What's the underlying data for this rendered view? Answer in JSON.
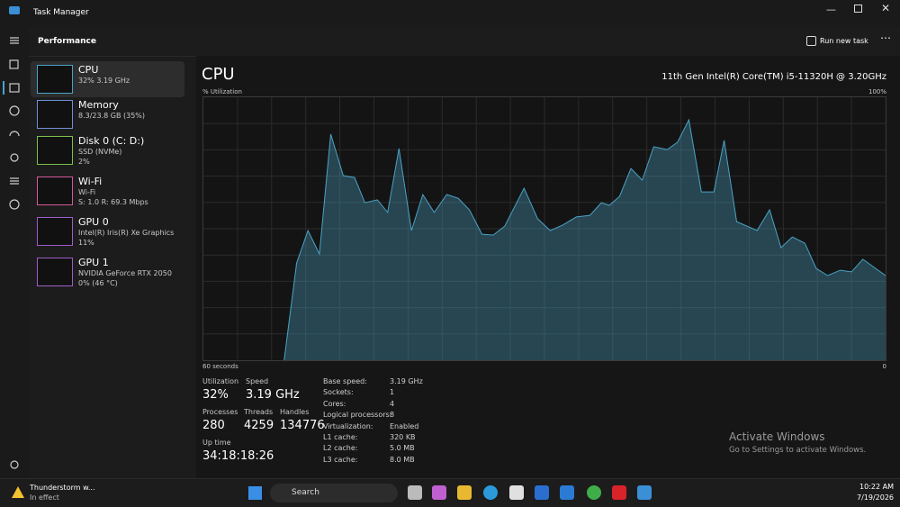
{
  "window": {
    "title": "Task Manager"
  },
  "header": {
    "title": "Performance",
    "action": "Run new task"
  },
  "devices": [
    {
      "name": "CPU",
      "lines": [
        "32% 3.19 GHz"
      ]
    },
    {
      "name": "Memory",
      "lines": [
        "8.3/23.8 GB (35%)"
      ]
    },
    {
      "name": "Disk 0 (C: D:)",
      "lines": [
        "SSD (NVMe)",
        "2%"
      ]
    },
    {
      "name": "Wi-Fi",
      "lines": [
        "Wi-Fi",
        "S: 1.0 R: 69.3 Mbps"
      ]
    },
    {
      "name": "GPU 0",
      "lines": [
        "Intel(R) Iris(R) Xe Graphics",
        "11%"
      ]
    },
    {
      "name": "GPU 1",
      "lines": [
        "NVIDIA GeForce RTX 2050",
        "0% (46 °C)"
      ]
    }
  ],
  "cpu": {
    "title": "CPU",
    "model": "11th Gen Intel(R) Core(TM) i5-11320H @ 3.20GHz",
    "y_label": "% Utilization",
    "y_max_label": "100%",
    "x_left_label": "60 seconds",
    "x_right_label": "0",
    "graph": {
      "type": "area",
      "x": [
        52.9,
        51.8,
        50.8,
        49.8,
        48.8,
        47.7,
        46.7,
        45.8,
        44.7,
        43.8,
        42.8,
        41.7,
        40.7,
        39.7,
        38.6,
        37.6,
        36.6,
        35.5,
        34.5,
        33.5,
        31.8,
        30.6,
        29.5,
        28.4,
        27.2,
        26.0,
        25.0,
        24.3,
        23.4,
        22.4,
        21.4,
        20.4,
        19.2,
        18.3,
        17.3,
        16.2,
        15.1,
        14.2,
        13.1,
        11.3,
        10.2,
        9.2,
        8.2,
        7.1,
        6.1,
        5.1,
        4.0,
        3.0,
        2.0,
        0
      ],
      "values": [
        0,
        37.0,
        49.3,
        40.4,
        86.0,
        70.2,
        69.5,
        59.9,
        61.0,
        56.2,
        80.5,
        49.3,
        63.0,
        56.2,
        63.0,
        61.6,
        57.2,
        47.9,
        47.6,
        51.0,
        65.4,
        53.8,
        49.3,
        51.4,
        54.5,
        55.1,
        59.9,
        58.9,
        62.3,
        72.9,
        68.5,
        81.2,
        80.1,
        82.9,
        91.4,
        64.0,
        64.0,
        83.6,
        52.7,
        49.3,
        57.2,
        42.8,
        46.9,
        44.5,
        34.9,
        32.2,
        34.2,
        33.6,
        38.4,
        32.2
      ],
      "xlim": [
        60,
        0
      ],
      "ylim": [
        0,
        100
      ],
      "color": "#4aa3c7"
    }
  },
  "stats": [
    {
      "label": "Utilization",
      "value": "32%"
    },
    {
      "label": "Speed",
      "value": "3.19 GHz"
    },
    {
      "label": "Processes",
      "value": "280"
    },
    {
      "label": "Threads",
      "value": "4259"
    },
    {
      "label": "Handles",
      "value": "134776"
    },
    {
      "label": "Up time",
      "value": "34:18:18:26"
    }
  ],
  "specs": [
    {
      "label": "Base speed:",
      "value": "3.19 GHz"
    },
    {
      "label": "Sockets:",
      "value": "1"
    },
    {
      "label": "Cores:",
      "value": "4"
    },
    {
      "label": "Logical processors:",
      "value": "8"
    },
    {
      "label": "Virtualization:",
      "value": "Enabled"
    },
    {
      "label": "L1 cache:",
      "value": "320 KB"
    },
    {
      "label": "L2 cache:",
      "value": "5.0 MB"
    },
    {
      "label": "L3 cache:",
      "value": "8.0 MB"
    }
  ],
  "watermark": {
    "title": "Activate Windows",
    "subtitle": "Go to Settings to activate Windows."
  },
  "taskbar": {
    "weather": "Thunderstorm w...",
    "weather_sub": "In effect",
    "search": "Search",
    "time": "10:22 AM",
    "date": "7/19/2026"
  }
}
